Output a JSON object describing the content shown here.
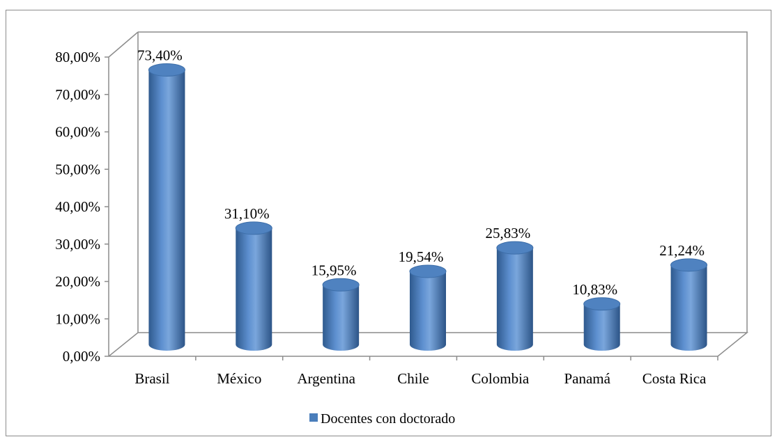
{
  "chart_data": {
    "type": "bar",
    "style": "3d-cylinder",
    "categories": [
      "Brasil",
      "México",
      "Argentina",
      "Chile",
      "Colombia",
      "Panamá",
      "Costa Rica"
    ],
    "series": [
      {
        "name": "Docentes con doctorado",
        "values": [
          73.4,
          31.1,
          15.95,
          19.54,
          25.83,
          10.83,
          21.24
        ],
        "labels": [
          "73,40%",
          "31,10%",
          "15,95%",
          "19,54%",
          "25,83%",
          "10,83%",
          "21,24%"
        ],
        "color": "#4a7ebb"
      }
    ],
    "yticks": [
      "0,00%",
      "10,00%",
      "20,00%",
      "30,00%",
      "40,00%",
      "50,00%",
      "60,00%",
      "70,00%",
      "80,00%"
    ],
    "ylim": [
      0,
      80
    ],
    "grid": false,
    "legend_position": "bottom",
    "colors": {
      "bar": "#4a7ebb",
      "bar_dark": "#2f5a8e",
      "bar_light": "#8fb4e0",
      "frame": "#8c8c8c"
    }
  }
}
